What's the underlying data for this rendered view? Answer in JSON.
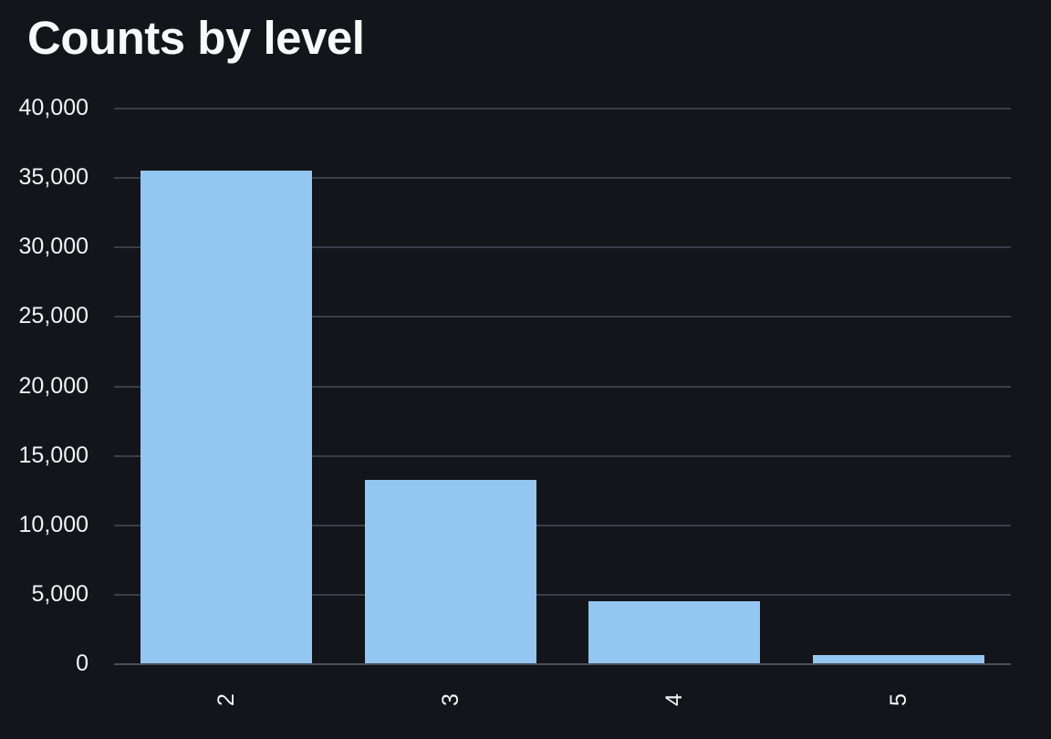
{
  "title": "Counts by level",
  "colors": {
    "background": "#13151b",
    "bar_fill": "#94c6f2",
    "gridline": "#3a3e49",
    "axis_line": "#4a4f5c",
    "text": "#f2f3f5",
    "title_text": "#f8f9fa"
  },
  "chart_data": {
    "type": "bar",
    "title": "Counts by level",
    "xlabel": "",
    "ylabel": "",
    "categories": [
      "2",
      "3",
      "4",
      "5"
    ],
    "values": [
      35500,
      13200,
      4500,
      600
    ],
    "ylim": [
      0,
      40000
    ],
    "ytick_values": [
      0,
      5000,
      10000,
      15000,
      20000,
      25000,
      30000,
      35000,
      40000
    ],
    "ytick_labels": [
      "0",
      "5,000",
      "10,000",
      "15,000",
      "20,000",
      "25,000",
      "30,000",
      "35,000",
      "40,000"
    ],
    "xtick_rotation_deg": -90,
    "grid": true,
    "legend": false
  }
}
